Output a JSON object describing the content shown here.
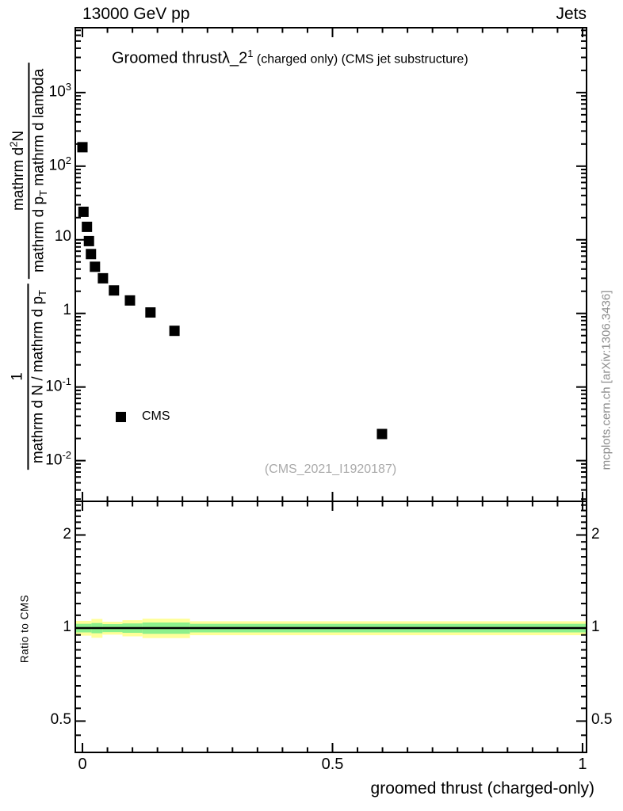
{
  "header": {
    "left": "13000 GeV pp",
    "right": "Jets"
  },
  "plot_title": {
    "main": "Groomed thrust",
    "symbol": "λ_2",
    "sup": "1",
    "rest": " (charged only) (CMS jet substructure)"
  },
  "legend": {
    "label": "CMS",
    "marker": "filled-black-square"
  },
  "watermark": "(CMS_2021_I1920187)",
  "side_note": "mcplots.cern.ch [arXiv:1306.3436]",
  "yaxis_label": {
    "frac1_num": "1",
    "frac1_den_main": "mathrm d N / mathrm d p",
    "frac1_den_sub": "T",
    "frac2_num_pre": "mathrm d",
    "frac2_num_sup": "2",
    "frac2_num_post": "N",
    "frac2_den_pre": "mathrm d p",
    "frac2_den_sub": "T",
    "frac2_den_post": " mathrm d lambda"
  },
  "colors": {
    "band_yellow": "#ffff99",
    "band_green": "#8df08c",
    "marker": "#000000",
    "axis": "#000000",
    "gray_text": "#8c8c8c",
    "watermark_gray": "#aaaaaa"
  },
  "chart_data": {
    "type": "scatter",
    "title": "Groomed thrust λ_2^1 (charged only) (CMS jet substructure)",
    "xlabel": "groomed thrust (charged-only)",
    "ylabel": "1/(mathrm dN/mathrm dp_T) mathrm d^2N/(mathrm dp_T mathrm d lambda)",
    "xlim": [
      -0.0143,
      1.008
    ],
    "ylog": true,
    "ylim": [
      0.0028,
      7600
    ],
    "grid": false,
    "legend_position": "inside-left-middle",
    "xticks": {
      "major": [
        0,
        0.5,
        1
      ],
      "minor_step": 0.05,
      "labels": [
        "0",
        "0.5",
        "1"
      ]
    },
    "ytick_labels": [
      {
        "v": 1000,
        "base": "10",
        "exp": "3"
      },
      {
        "v": 100,
        "base": "10",
        "exp": "2"
      },
      {
        "v": 10,
        "base": "10",
        "exp": ""
      },
      {
        "v": 1,
        "base": "1",
        "exp": ""
      },
      {
        "v": 0.1,
        "base": "10",
        "exp": "-1"
      },
      {
        "v": 0.01,
        "base": "10",
        "exp": "-2"
      }
    ],
    "series": [
      {
        "name": "CMS",
        "marker": "filled-square",
        "color": "#000000",
        "points": [
          [
            0.0,
            181
          ],
          [
            0.002,
            24
          ],
          [
            0.009,
            15
          ],
          [
            0.013,
            9.6
          ],
          [
            0.017,
            6.4
          ],
          [
            0.025,
            4.3
          ],
          [
            0.041,
            3.0
          ],
          [
            0.063,
            2.05
          ],
          [
            0.095,
            1.5
          ],
          [
            0.136,
            1.03
          ],
          [
            0.184,
            0.58
          ],
          [
            0.599,
            0.023
          ]
        ]
      }
    ],
    "ratio_panel": {
      "ylabel": "Ratio to CMS",
      "ylog": true,
      "ylim": [
        0.396,
        2.57
      ],
      "yticks": {
        "major": [
          0.5,
          1,
          2
        ],
        "labels": [
          "0.5",
          "1",
          "2"
        ],
        "minor": [
          0.45,
          0.55,
          0.6,
          0.65,
          0.7,
          0.75,
          0.8,
          0.85,
          0.9,
          0.95,
          1.1,
          1.2,
          1.3,
          1.4,
          1.5,
          1.6,
          1.7,
          1.8,
          1.9,
          2.1,
          2.2,
          2.3,
          2.4,
          2.5
        ]
      },
      "reference_line": 1.0,
      "band_segments": [
        {
          "x0": -0.0143,
          "x1": 0.018,
          "ylo": 0.945,
          "yhi": 1.055,
          "glo": 0.968,
          "ghi": 1.032
        },
        {
          "x0": 0.018,
          "x1": 0.04,
          "ylo": 0.93,
          "yhi": 1.07,
          "glo": 0.962,
          "ghi": 1.038
        },
        {
          "x0": 0.04,
          "x1": 0.08,
          "ylo": 0.952,
          "yhi": 1.048,
          "glo": 0.97,
          "ghi": 1.03
        },
        {
          "x0": 0.08,
          "x1": 0.12,
          "ylo": 0.94,
          "yhi": 1.06,
          "glo": 0.965,
          "ghi": 1.035
        },
        {
          "x0": 0.12,
          "x1": 0.215,
          "ylo": 0.928,
          "yhi": 1.072,
          "glo": 0.958,
          "ghi": 1.042
        },
        {
          "x0": 0.215,
          "x1": 1.008,
          "ylo": 0.948,
          "yhi": 1.052,
          "glo": 0.968,
          "ghi": 1.032
        }
      ]
    }
  }
}
